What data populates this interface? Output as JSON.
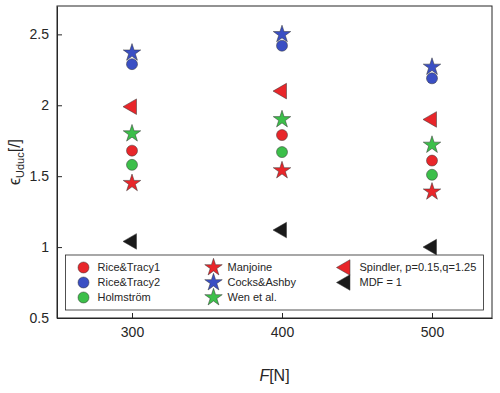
{
  "chart_data": {
    "type": "scatter",
    "x_label": [
      "F",
      "[N]"
    ],
    "y_label": [
      "ϵ",
      "Uduc",
      "[/]"
    ],
    "x": [
      300,
      400,
      500
    ],
    "xlim": [
      250,
      540
    ],
    "xticks": [
      300,
      400,
      500
    ],
    "ylim": [
      0.5,
      2.7
    ],
    "yticks": [
      0.5,
      1,
      1.5,
      2,
      2.5
    ],
    "grid": false,
    "legend": "lower center",
    "series": [
      {
        "name": "Rice&Tracy1",
        "color": "#e8262a",
        "marker": "circle",
        "values": [
          1.68,
          1.79,
          1.61
        ]
      },
      {
        "name": "Rice&Tracy2",
        "color": "#3a4fc4",
        "marker": "circle",
        "values": [
          2.29,
          2.42,
          2.19
        ]
      },
      {
        "name": "Holmström",
        "color": "#3cbf4a",
        "marker": "circle",
        "values": [
          1.58,
          1.67,
          1.51
        ]
      },
      {
        "name": "Manjoine",
        "color": "#e8262a",
        "marker": "star",
        "values": [
          1.45,
          1.54,
          1.39
        ]
      },
      {
        "name": "Cocks&Ashby",
        "color": "#3a4fc4",
        "marker": "star",
        "values": [
          2.37,
          2.5,
          2.27
        ]
      },
      {
        "name": "Wen et al.",
        "color": "#3cbf4a",
        "marker": "star",
        "values": [
          1.8,
          1.9,
          1.72
        ]
      },
      {
        "name": "Spindler, p=0.15,q=1.25",
        "color": "#e8262a",
        "marker": "triangle-left",
        "values": [
          1.99,
          2.1,
          1.9
        ]
      },
      {
        "name": "MDF = 1",
        "color": "#1a1a1a",
        "marker": "triangle-left",
        "values": [
          1.04,
          1.12,
          1.0
        ]
      }
    ]
  }
}
